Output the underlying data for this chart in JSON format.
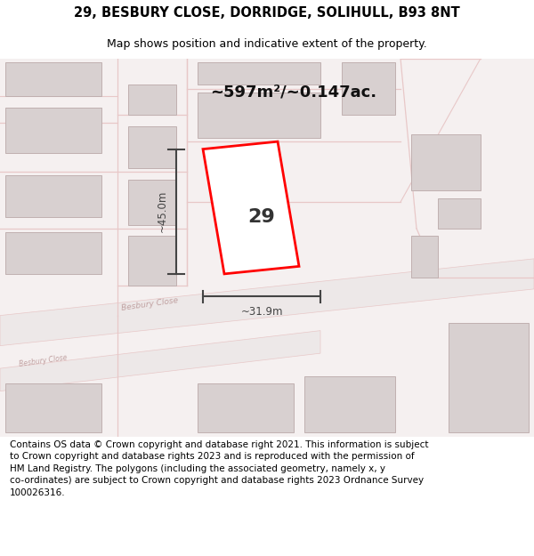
{
  "title_line1": "29, BESBURY CLOSE, DORRIDGE, SOLIHULL, B93 8NT",
  "title_line2": "Map shows position and indicative extent of the property.",
  "area_text": "~597m²/~0.147ac.",
  "label_number": "29",
  "dim_width": "~31.9m",
  "dim_height": "~45.0m",
  "footer_text": "Contains OS data © Crown copyright and database right 2021. This information is subject to Crown copyright and database rights 2023 and is reproduced with the permission of HM Land Registry. The polygons (including the associated geometry, namely x, y co-ordinates) are subject to Crown copyright and database rights 2023 Ordnance Survey 100026316.",
  "map_bg": "#f5f0f0",
  "road_color": "#e8c8c8",
  "road_fill": "#ede8e8",
  "building_fill": "#d8d0d0",
  "building_edge": "#c0b0b0",
  "highlight_fill": "#ffffff",
  "highlight_edge": "#ff0000",
  "road_text_color": "#c0a0a0",
  "dim_color": "#444444",
  "title_color": "#000000",
  "footer_color": "#000000"
}
